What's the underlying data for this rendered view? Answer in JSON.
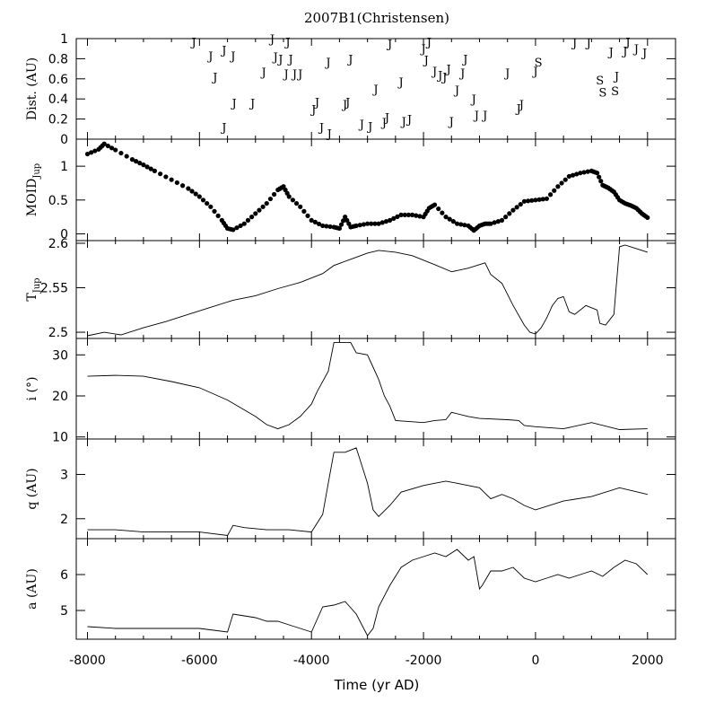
{
  "chart_data": {
    "type": "scatter",
    "title": "2007B1(Christensen)",
    "xlabel": "Time (yr AD)",
    "xlim": [
      -8200,
      2500
    ],
    "xticks": [
      -8000,
      -6000,
      -4000,
      -2000,
      0,
      2000
    ],
    "panels": [
      {
        "id": "dist",
        "ylabel": "Dist. (AU)",
        "ylim": [
          0,
          1
        ],
        "yticks": [
          0,
          0.2,
          0.4,
          0.6,
          0.8,
          1
        ],
        "series_type": "letters",
        "encounters": [
          {
            "x": -6100,
            "y": 0.97,
            "label": "J"
          },
          {
            "x": -5800,
            "y": 0.83,
            "label": "J"
          },
          {
            "x": -5720,
            "y": 0.62,
            "label": "J"
          },
          {
            "x": -5560,
            "y": 0.89,
            "label": "J"
          },
          {
            "x": -5400,
            "y": 0.83,
            "label": "J"
          },
          {
            "x": -5380,
            "y": 0.36,
            "label": "J"
          },
          {
            "x": -5560,
            "y": 0.12,
            "label": "J"
          },
          {
            "x": -5050,
            "y": 0.36,
            "label": "J"
          },
          {
            "x": -4850,
            "y": 0.67,
            "label": "J"
          },
          {
            "x": -4700,
            "y": 1.0,
            "label": "J"
          },
          {
            "x": -4640,
            "y": 0.82,
            "label": "J"
          },
          {
            "x": -4550,
            "y": 0.8,
            "label": "J"
          },
          {
            "x": -4450,
            "y": 0.65,
            "label": "J"
          },
          {
            "x": -4420,
            "y": 0.97,
            "label": "J"
          },
          {
            "x": -4370,
            "y": 0.8,
            "label": "J"
          },
          {
            "x": -4300,
            "y": 0.65,
            "label": "J"
          },
          {
            "x": -4200,
            "y": 0.65,
            "label": "J"
          },
          {
            "x": -3960,
            "y": 0.3,
            "label": "J"
          },
          {
            "x": -3900,
            "y": 0.37,
            "label": "J"
          },
          {
            "x": -3820,
            "y": 0.12,
            "label": "J"
          },
          {
            "x": -3700,
            "y": 0.77,
            "label": "J"
          },
          {
            "x": -3680,
            "y": 0.06,
            "label": "J"
          },
          {
            "x": -3400,
            "y": 0.35,
            "label": "J"
          },
          {
            "x": -3350,
            "y": 0.37,
            "label": "J"
          },
          {
            "x": -3300,
            "y": 0.8,
            "label": "J"
          },
          {
            "x": -3100,
            "y": 0.15,
            "label": "J"
          },
          {
            "x": -2950,
            "y": 0.13,
            "label": "J"
          },
          {
            "x": -2850,
            "y": 0.5,
            "label": "J"
          },
          {
            "x": -2700,
            "y": 0.17,
            "label": "J"
          },
          {
            "x": -2650,
            "y": 0.22,
            "label": "J"
          },
          {
            "x": -2600,
            "y": 0.95,
            "label": "J"
          },
          {
            "x": -2400,
            "y": 0.57,
            "label": "J"
          },
          {
            "x": -2350,
            "y": 0.18,
            "label": "J"
          },
          {
            "x": -2250,
            "y": 0.2,
            "label": "J"
          },
          {
            "x": -2000,
            "y": 0.9,
            "label": "J"
          },
          {
            "x": -1950,
            "y": 0.79,
            "label": "J"
          },
          {
            "x": -1900,
            "y": 0.97,
            "label": "J"
          },
          {
            "x": -1800,
            "y": 0.68,
            "label": "J"
          },
          {
            "x": -1700,
            "y": 0.64,
            "label": "J"
          },
          {
            "x": -1620,
            "y": 0.62,
            "label": "J"
          },
          {
            "x": -1550,
            "y": 0.7,
            "label": "J"
          },
          {
            "x": -1500,
            "y": 0.18,
            "label": "J"
          },
          {
            "x": -1400,
            "y": 0.49,
            "label": "J"
          },
          {
            "x": -1300,
            "y": 0.66,
            "label": "J"
          },
          {
            "x": -1250,
            "y": 0.8,
            "label": "J"
          },
          {
            "x": -1100,
            "y": 0.4,
            "label": "J"
          },
          {
            "x": -1050,
            "y": 0.24,
            "label": "J"
          },
          {
            "x": -900,
            "y": 0.24,
            "label": "J"
          },
          {
            "x": -500,
            "y": 0.66,
            "label": "J"
          },
          {
            "x": -300,
            "y": 0.31,
            "label": "J"
          },
          {
            "x": -250,
            "y": 0.35,
            "label": "J"
          },
          {
            "x": 0,
            "y": 0.68,
            "label": "J"
          },
          {
            "x": 50,
            "y": 0.77,
            "label": "S"
          },
          {
            "x": 700,
            "y": 0.96,
            "label": "J"
          },
          {
            "x": 950,
            "y": 0.96,
            "label": "J"
          },
          {
            "x": 1150,
            "y": 0.59,
            "label": "S"
          },
          {
            "x": 1200,
            "y": 0.47,
            "label": "S"
          },
          {
            "x": 1350,
            "y": 0.87,
            "label": "J"
          },
          {
            "x": 1420,
            "y": 0.48,
            "label": "S"
          },
          {
            "x": 1450,
            "y": 0.63,
            "label": "J"
          },
          {
            "x": 1600,
            "y": 0.88,
            "label": "J"
          },
          {
            "x": 1650,
            "y": 0.97,
            "label": "J"
          },
          {
            "x": 1800,
            "y": 0.9,
            "label": "J"
          },
          {
            "x": 1950,
            "y": 0.86,
            "label": "J"
          }
        ]
      },
      {
        "id": "moid",
        "ylabel": "MOID",
        "ylabel_sub": "Jup",
        "ylim": [
          -0.1,
          1.4
        ],
        "yticks": [
          0,
          0.5,
          1
        ],
        "series_type": "dots",
        "x": [
          -8000,
          -7800,
          -7700,
          -7500,
          -7200,
          -7000,
          -6800,
          -6500,
          -6200,
          -6000,
          -5800,
          -5600,
          -5500,
          -5400,
          -5200,
          -5000,
          -4800,
          -4600,
          -4500,
          -4400,
          -4200,
          -4000,
          -3800,
          -3600,
          -3500,
          -3400,
          -3300,
          -3200,
          -3000,
          -2800,
          -2600,
          -2400,
          -2200,
          -2000,
          -1900,
          -1800,
          -1600,
          -1400,
          -1200,
          -1100,
          -1000,
          -900,
          -800,
          -600,
          -400,
          -200,
          0,
          200,
          400,
          600,
          800,
          1000,
          1100,
          1200,
          1300,
          1400,
          1500,
          1600,
          1700,
          1800,
          1900,
          2000
        ],
        "y": [
          1.18,
          1.25,
          1.33,
          1.24,
          1.1,
          1.02,
          0.93,
          0.8,
          0.67,
          0.55,
          0.4,
          0.2,
          0.08,
          0.06,
          0.15,
          0.3,
          0.45,
          0.65,
          0.7,
          0.55,
          0.4,
          0.2,
          0.12,
          0.1,
          0.08,
          0.25,
          0.1,
          0.12,
          0.15,
          0.15,
          0.2,
          0.28,
          0.28,
          0.25,
          0.38,
          0.43,
          0.25,
          0.15,
          0.12,
          0.05,
          0.12,
          0.15,
          0.15,
          0.2,
          0.35,
          0.48,
          0.5,
          0.52,
          0.7,
          0.85,
          0.9,
          0.93,
          0.9,
          0.72,
          0.68,
          0.62,
          0.5,
          0.45,
          0.42,
          0.38,
          0.3,
          0.24
        ]
      },
      {
        "id": "tjup",
        "ylabel": "T",
        "ylabel_sub": "Jup",
        "ylim": [
          2.493,
          2.603
        ],
        "yticks": [
          2.5,
          2.55,
          2.6
        ],
        "series_type": "line",
        "x": [
          -8000,
          -7700,
          -7400,
          -7000,
          -6600,
          -6200,
          -5800,
          -5400,
          -5000,
          -4600,
          -4200,
          -3800,
          -3600,
          -3300,
          -3000,
          -2800,
          -2500,
          -2200,
          -1800,
          -1500,
          -1200,
          -900,
          -800,
          -600,
          -400,
          -200,
          -100,
          0,
          100,
          200,
          300,
          400,
          500,
          600,
          700,
          900,
          1100,
          1150,
          1250,
          1300,
          1400,
          1500,
          1600,
          1800,
          2000
        ],
        "y": [
          2.496,
          2.5,
          2.497,
          2.505,
          2.512,
          2.52,
          2.528,
          2.536,
          2.541,
          2.549,
          2.556,
          2.566,
          2.575,
          2.582,
          2.589,
          2.592,
          2.59,
          2.586,
          2.576,
          2.568,
          2.572,
          2.578,
          2.565,
          2.555,
          2.53,
          2.508,
          2.5,
          2.498,
          2.505,
          2.516,
          2.53,
          2.538,
          2.54,
          2.523,
          2.52,
          2.53,
          2.525,
          2.51,
          2.508,
          2.512,
          2.52,
          2.596,
          2.598,
          2.594,
          2.59
        ]
      },
      {
        "id": "incl",
        "ylabel": "i (°)",
        "ylim": [
          9.5,
          34
        ],
        "yticks": [
          10,
          20,
          30
        ],
        "series_type": "line",
        "x": [
          -8000,
          -7500,
          -7000,
          -6500,
          -6000,
          -5500,
          -5000,
          -4800,
          -4600,
          -4400,
          -4200,
          -4000,
          -3900,
          -3700,
          -3600,
          -3300,
          -3200,
          -3000,
          -2900,
          -2800,
          -2700,
          -2600,
          -2500,
          -2000,
          -1800,
          -1600,
          -1500,
          -1200,
          -1000,
          -500,
          -300,
          -200,
          0,
          500,
          1000,
          1500,
          2000
        ],
        "y": [
          24.8,
          25.0,
          24.8,
          23.5,
          22.0,
          19.0,
          15.0,
          13.0,
          12.0,
          13.0,
          15.0,
          18.0,
          21.0,
          26.0,
          33.0,
          33.0,
          30.5,
          30.0,
          27.0,
          24.0,
          20.0,
          17.5,
          14.0,
          13.5,
          14.0,
          14.2,
          16.0,
          15.0,
          14.5,
          14.2,
          14.0,
          12.8,
          12.5,
          12.0,
          13.5,
          11.8,
          12.0
        ]
      },
      {
        "id": "q",
        "ylabel": "q (AU)",
        "ylim": [
          1.55,
          3.8
        ],
        "yticks": [
          2,
          3
        ],
        "series_type": "line",
        "x": [
          -8000,
          -7500,
          -7000,
          -6500,
          -6000,
          -5500,
          -5400,
          -5200,
          -4800,
          -4400,
          -4000,
          -3800,
          -3700,
          -3600,
          -3500,
          -3400,
          -3200,
          -3100,
          -3000,
          -2900,
          -2800,
          -2600,
          -2400,
          -2000,
          -1800,
          -1600,
          -1400,
          -1000,
          -800,
          -600,
          -400,
          -200,
          0,
          500,
          1000,
          1500,
          2000
        ],
        "y": [
          1.75,
          1.75,
          1.7,
          1.7,
          1.7,
          1.62,
          1.85,
          1.8,
          1.75,
          1.75,
          1.7,
          2.1,
          2.8,
          3.5,
          3.5,
          3.5,
          3.6,
          3.2,
          2.8,
          2.2,
          2.05,
          2.3,
          2.6,
          2.75,
          2.8,
          2.85,
          2.8,
          2.7,
          2.45,
          2.55,
          2.45,
          2.3,
          2.2,
          2.4,
          2.5,
          2.7,
          2.55
        ]
      },
      {
        "id": "a",
        "ylabel": "a (AU)",
        "ylim": [
          4.2,
          7.0
        ],
        "yticks": [
          5,
          6
        ],
        "series_type": "line",
        "x": [
          -8000,
          -7500,
          -7000,
          -6500,
          -6000,
          -5500,
          -5400,
          -5200,
          -5000,
          -4800,
          -4600,
          -4400,
          -4000,
          -3800,
          -3600,
          -3400,
          -3200,
          -3000,
          -2900,
          -2800,
          -2600,
          -2400,
          -2200,
          -2000,
          -1800,
          -1600,
          -1400,
          -1200,
          -1100,
          -1000,
          -950,
          -800,
          -600,
          -400,
          -200,
          0,
          200,
          400,
          600,
          800,
          1000,
          1200,
          1400,
          1600,
          1800,
          2000
        ],
        "y": [
          4.55,
          4.5,
          4.5,
          4.5,
          4.5,
          4.4,
          4.9,
          4.85,
          4.8,
          4.7,
          4.7,
          4.6,
          4.4,
          5.1,
          5.15,
          5.25,
          4.9,
          4.3,
          4.5,
          5.1,
          5.7,
          6.2,
          6.4,
          6.5,
          6.6,
          6.5,
          6.7,
          6.4,
          6.5,
          5.6,
          5.7,
          6.1,
          6.1,
          6.2,
          5.9,
          5.8,
          5.9,
          6.0,
          5.9,
          6.0,
          6.1,
          5.95,
          6.2,
          6.4,
          6.3,
          6.0
        ]
      }
    ]
  }
}
